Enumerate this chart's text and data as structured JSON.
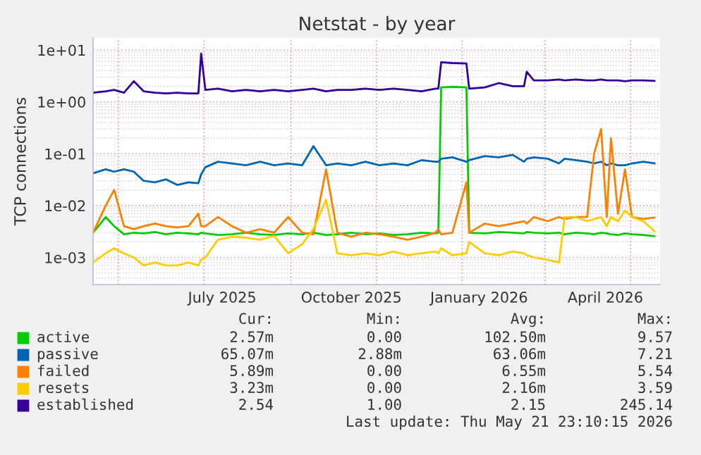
{
  "chart_data": {
    "type": "line",
    "title": "Netstat - by year",
    "ylabel": "TCP connections",
    "log": "y",
    "grid": true,
    "legend": "bottom",
    "marker": "none",
    "line_style": "solid",
    "x": [
      "2025-04-13",
      "2025-04-22",
      "2025-04-28",
      "2025-05-05",
      "2025-05-12",
      "2025-05-19",
      "2025-05-27",
      "2025-06-04",
      "2025-06-12",
      "2025-06-20",
      "2025-06-27",
      "2025-06-29",
      "2025-07-02",
      "2025-07-11",
      "2025-07-21",
      "2025-07-31",
      "2025-08-10",
      "2025-08-20",
      "2025-08-30",
      "2025-09-09",
      "2025-09-17",
      "2025-09-26",
      "2025-10-04",
      "2025-10-14",
      "2025-10-24",
      "2025-11-03",
      "2025-11-13",
      "2025-11-23",
      "2025-12-03",
      "2025-12-13",
      "2025-12-15",
      "2025-12-17",
      "2025-12-25",
      "2026-01-04",
      "2026-01-06",
      "2026-01-17",
      "2026-01-27",
      "2026-02-06",
      "2026-02-14",
      "2026-02-16",
      "2026-02-21",
      "2026-03-03",
      "2026-03-11",
      "2026-03-15",
      "2026-03-23",
      "2026-03-31",
      "2026-04-05",
      "2026-04-10",
      "2026-04-14",
      "2026-04-17",
      "2026-04-22",
      "2026-04-27",
      "2026-05-02",
      "2026-05-10",
      "2026-05-18"
    ],
    "xlim": [
      "2025-04-13",
      "2026-05-22"
    ],
    "xticks": [
      {
        "value": "2025-05-01",
        "label": null
      },
      {
        "value": "2025-07-01",
        "label": null
      },
      {
        "value": "2025-09-01",
        "label": null
      },
      {
        "value": "2025-11-01",
        "label": null
      },
      {
        "value": "2026-01-01",
        "label": null
      },
      {
        "value": "2026-03-01",
        "label": null
      },
      {
        "value": "2026-05-01",
        "label": null
      },
      {
        "value": "2025-07-14",
        "label": "July 2025"
      },
      {
        "value": "2025-10-14",
        "label": "October 2025"
      },
      {
        "value": "2026-01-13",
        "label": "January 2026"
      },
      {
        "value": "2026-04-13",
        "label": "April 2026"
      }
    ],
    "ylim": [
      0.0003,
      17
    ],
    "yticks": [
      {
        "value": 0.001,
        "label": "1e-03"
      },
      {
        "value": 0.01,
        "label": "1e-02"
      },
      {
        "value": 0.1,
        "label": "1e-01"
      },
      {
        "value": 1,
        "label": "1e+00"
      },
      {
        "value": 10,
        "label": "1e+01"
      }
    ],
    "series": [
      {
        "name": "active",
        "color": "#00cc00",
        "values": [
          0.003,
          0.006,
          0.004,
          0.0028,
          0.003,
          0.0029,
          0.0031,
          0.0028,
          0.003,
          0.0029,
          0.0028,
          0.003,
          0.0029,
          0.0027,
          0.0028,
          0.003,
          0.0028,
          0.0027,
          0.0029,
          0.0028,
          0.003,
          0.0027,
          0.0028,
          0.003,
          0.0028,
          0.0029,
          0.0027,
          0.0028,
          0.003,
          0.0029,
          0.003,
          1.9,
          1.95,
          1.9,
          0.003,
          0.0029,
          0.0031,
          0.003,
          0.0029,
          0.0031,
          0.003,
          0.0029,
          0.003,
          0.0028,
          0.003,
          0.0029,
          0.0028,
          0.003,
          0.0029,
          0.0028,
          0.0027,
          0.0029,
          0.0028,
          0.0027,
          0.00257
        ]
      },
      {
        "name": "passive",
        "color": "#0066b3",
        "values": [
          0.042,
          0.05,
          0.045,
          0.05,
          0.045,
          0.03,
          0.028,
          0.032,
          0.025,
          0.028,
          0.027,
          0.04,
          0.055,
          0.07,
          0.065,
          0.06,
          0.07,
          0.06,
          0.065,
          0.06,
          0.14,
          0.06,
          0.065,
          0.06,
          0.07,
          0.06,
          0.065,
          0.06,
          0.075,
          0.07,
          0.07,
          0.08,
          0.085,
          0.07,
          0.075,
          0.09,
          0.085,
          0.095,
          0.07,
          0.08,
          0.085,
          0.08,
          0.065,
          0.08,
          0.075,
          0.07,
          0.065,
          0.07,
          0.06,
          0.065,
          0.06,
          0.06,
          0.065,
          0.07,
          0.065
        ]
      },
      {
        "name": "failed",
        "color": "#ff8000",
        "values": [
          0.003,
          0.01,
          0.02,
          0.004,
          0.0035,
          0.004,
          0.0045,
          0.004,
          0.0038,
          0.004,
          0.007,
          0.004,
          0.004,
          0.006,
          0.004,
          0.003,
          0.0035,
          0.003,
          0.006,
          0.003,
          0.0028,
          0.05,
          0.003,
          0.0025,
          0.003,
          0.0028,
          0.0025,
          0.0022,
          0.0025,
          0.003,
          0.0035,
          0.0028,
          0.003,
          0.028,
          0.003,
          0.0045,
          0.004,
          0.0045,
          0.005,
          0.0045,
          0.006,
          0.005,
          0.006,
          0.0055,
          0.006,
          0.006,
          0.1,
          0.3,
          0.006,
          0.2,
          0.007,
          0.05,
          0.006,
          0.0055,
          0.00589
        ]
      },
      {
        "name": "resets",
        "color": "#ffcc00",
        "values": [
          0.0008,
          0.0012,
          0.0015,
          0.0012,
          0.001,
          0.0007,
          0.0008,
          0.0007,
          0.0007,
          0.0008,
          0.0007,
          0.0009,
          0.001,
          0.0022,
          0.0025,
          0.0024,
          0.0022,
          0.0026,
          0.0012,
          0.0018,
          0.0035,
          0.013,
          0.0012,
          0.0011,
          0.0012,
          0.0011,
          0.0013,
          0.0011,
          0.0012,
          0.0013,
          0.0012,
          0.0015,
          0.0011,
          0.0012,
          0.002,
          0.0012,
          0.0011,
          0.0013,
          0.0012,
          0.0011,
          0.001,
          0.0009,
          0.0008,
          0.006,
          0.006,
          0.005,
          0.0055,
          0.006,
          0.004,
          0.006,
          0.005,
          0.008,
          0.006,
          0.005,
          0.00323
        ]
      },
      {
        "name": "established",
        "color": "#330099",
        "values": [
          1.5,
          1.6,
          1.7,
          1.5,
          2.5,
          1.6,
          1.5,
          1.45,
          1.5,
          1.45,
          1.45,
          8.5,
          1.7,
          1.8,
          1.6,
          1.7,
          1.6,
          1.7,
          1.6,
          1.7,
          1.8,
          1.6,
          1.7,
          1.7,
          1.8,
          1.7,
          1.8,
          1.7,
          1.6,
          1.8,
          1.8,
          5.8,
          5.6,
          5.5,
          1.8,
          1.9,
          2.3,
          2.0,
          2.0,
          3.8,
          2.6,
          2.6,
          2.7,
          2.6,
          2.7,
          2.6,
          2.6,
          2.7,
          2.6,
          2.6,
          2.6,
          2.5,
          2.6,
          2.6,
          2.54
        ]
      }
    ],
    "annotations": [
      "Cur:",
      "Min:",
      "Avg:",
      "Max:",
      "2.57m",
      "0.00",
      "102.50m",
      "9.57",
      "65.07m",
      "2.88m",
      "63.06m",
      "7.21",
      "5.89m",
      "0.00",
      "6.55m",
      "5.54",
      "3.23m",
      "0.00",
      "2.16m",
      "3.59",
      "2.54",
      "1.00",
      "2.15",
      "245.14",
      "Last update: Thu May 21 23:10:15 2026"
    ]
  }
}
